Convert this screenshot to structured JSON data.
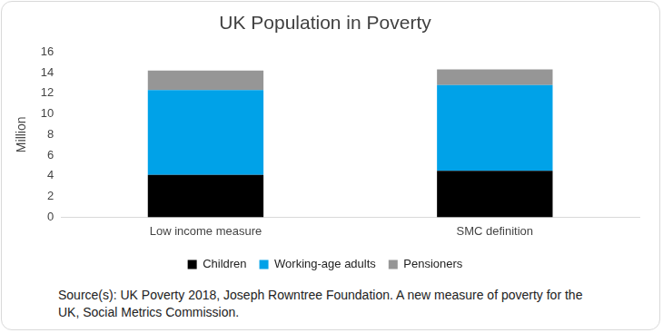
{
  "chart_data": {
    "type": "bar",
    "title": "UK Population in Poverty",
    "y_label": "Million",
    "categories": [
      "Low income measure",
      "SMC definition"
    ],
    "series": [
      {
        "name": "Children",
        "color": "#000000",
        "values": [
          4.1,
          4.5
        ]
      },
      {
        "name": "Working-age adults",
        "color": "#00a2e8",
        "values": [
          8.2,
          8.3
        ]
      },
      {
        "name": "Pensioners",
        "color": "#969696",
        "values": [
          1.9,
          1.5
        ]
      }
    ],
    "stacked": true,
    "ylim": [
      0,
      16
    ],
    "yticks": [
      0,
      2,
      4,
      6,
      8,
      10,
      12,
      14,
      16
    ],
    "grid": false,
    "legend": "bottom",
    "source": "Source(s):  UK Poverty 2018, Joseph Rowntree Foundation. A new measure of poverty for the UK, Social Metrics Commission."
  }
}
